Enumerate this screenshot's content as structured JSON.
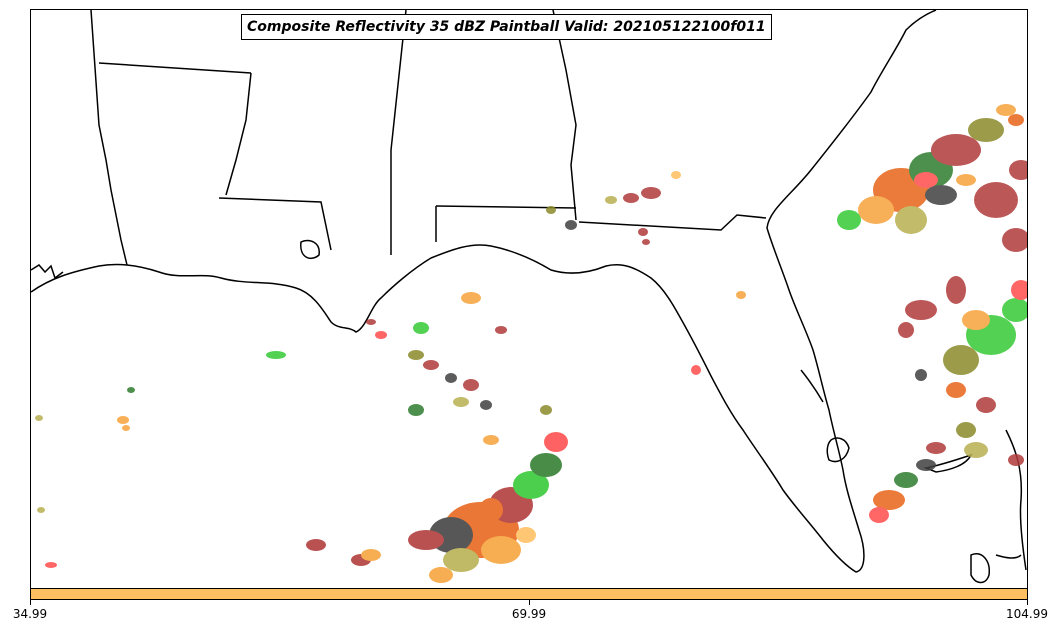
{
  "title": "Composite Reflectivity 35 dBZ Paintball Valid: 202105122100f011",
  "colorbar": {
    "color": "#ffbf60",
    "ticks": [
      "34.99",
      "69.99",
      "104.99"
    ]
  },
  "map": {
    "region": "Southeastern United States, Gulf of Mexico, Florida",
    "palette": [
      "#b03a3a",
      "#e8651a",
      "#f6a33b",
      "#ffbf60",
      "#2f7d2f",
      "#34c934",
      "#8a8a2a",
      "#b8b050",
      "#404040",
      "#ff4d4d"
    ]
  }
}
